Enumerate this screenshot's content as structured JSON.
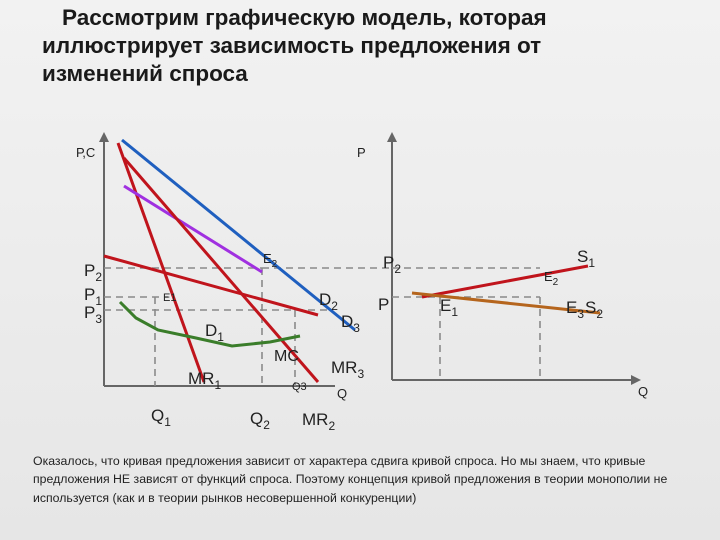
{
  "slide": {
    "title": "Рассмотрим графическую модель, которая иллюстрирует зависимость предложения от изменений спроса",
    "caption": "Оказалось, что кривая предложения зависит от характера сдвига кривой спроса. Но мы знаем, что кривые предложения НЕ зависят от функций спроса. Поэтому концепция кривой предложения в теории монополии не используется (как и в теории рынков несовершенной конкуренции)"
  },
  "left_graph": {
    "y_axis": "Р,С",
    "p2": {
      "base": "P",
      "sub": "2"
    },
    "p1": {
      "base": "P",
      "sub": "1"
    },
    "p3": {
      "base": "P",
      "sub": "3"
    },
    "e1": "E1",
    "e2": "E2",
    "d1": {
      "base": "D",
      "sub": "1"
    },
    "d2": {
      "base": "D",
      "sub": "2"
    },
    "d3": {
      "base": "D",
      "sub": "3"
    },
    "mc": "MC",
    "mr1": {
      "base": "MR",
      "sub": "1"
    },
    "mr2": {
      "base": "MR",
      "sub": "2"
    },
    "mr3": {
      "base": "MR",
      "sub": "3"
    },
    "q1": {
      "base": "Q",
      "sub": "1"
    },
    "q2": {
      "base": "Q",
      "sub": "2"
    },
    "q3": "Q3",
    "x_axis": "Q"
  },
  "right_graph": {
    "y_axis": "Р",
    "p2": {
      "base": "P",
      "sub": "2"
    },
    "p": "P",
    "e1": {
      "base": "E",
      "sub": "1"
    },
    "e2": {
      "base": "E",
      "sub": "2"
    },
    "e3": {
      "base": "E",
      "sub": "3"
    },
    "s1": {
      "base": "S",
      "sub": "1"
    },
    "s2": {
      "base": "S",
      "sub": "2"
    },
    "x_axis": "Q"
  },
  "colors": {
    "demand": "#1f5fbf",
    "marginal_revenue": "#c0141c",
    "d3_line": "#a030e0",
    "mc": "#3a7d2a",
    "s2": "#b5651d",
    "axis": "#666666",
    "dashed": "#8a8a8a"
  }
}
